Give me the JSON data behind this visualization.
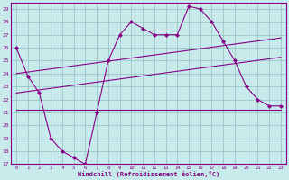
{
  "x": [
    0,
    1,
    2,
    3,
    4,
    5,
    6,
    7,
    8,
    9,
    10,
    11,
    12,
    13,
    14,
    15,
    16,
    17,
    18,
    19,
    20,
    21,
    22,
    23
  ],
  "windchill": [
    26.0,
    23.8,
    22.5,
    19.0,
    18.0,
    17.5,
    17.0,
    21.0,
    25.0,
    27.0,
    28.0,
    27.5,
    27.0,
    27.0,
    27.0,
    29.2,
    29.0,
    28.0,
    26.5,
    25.0,
    23.0,
    22.0,
    21.5,
    21.5
  ],
  "line_upper": [
    24.0,
    24.12,
    24.24,
    24.36,
    24.48,
    24.6,
    24.72,
    24.84,
    24.96,
    25.08,
    25.2,
    25.32,
    25.44,
    25.56,
    25.68,
    25.8,
    25.92,
    26.04,
    26.16,
    26.28,
    26.4,
    26.52,
    26.64,
    26.76
  ],
  "line_lower": [
    22.5,
    22.62,
    22.74,
    22.86,
    22.98,
    23.1,
    23.22,
    23.34,
    23.46,
    23.58,
    23.7,
    23.82,
    23.94,
    24.06,
    24.18,
    24.3,
    24.42,
    24.54,
    24.66,
    24.78,
    24.9,
    25.02,
    25.14,
    25.26
  ],
  "line_flat": [
    21.2,
    21.2,
    21.2,
    21.2,
    21.2,
    21.2,
    21.2,
    21.2,
    21.2,
    21.2,
    21.2,
    21.2,
    21.2,
    21.2,
    21.2,
    21.2,
    21.2,
    21.2,
    21.2,
    21.2,
    21.2,
    21.2,
    21.2,
    21.2
  ],
  "color": "#880088",
  "bg_color": "#c8eaea",
  "grid_color": "#8fbfbf",
  "xlabel": "Windchill (Refroidissement éolien,°C)",
  "ylim": [
    17,
    29.5
  ],
  "xlim": [
    -0.5,
    23.5
  ],
  "yticks": [
    17,
    18,
    19,
    20,
    21,
    22,
    23,
    24,
    25,
    26,
    27,
    28,
    29
  ],
  "xticks": [
    0,
    1,
    2,
    3,
    4,
    5,
    6,
    7,
    8,
    9,
    10,
    11,
    12,
    13,
    14,
    15,
    16,
    17,
    18,
    19,
    20,
    21,
    22,
    23
  ],
  "marker": "D",
  "markersize": 2.0
}
